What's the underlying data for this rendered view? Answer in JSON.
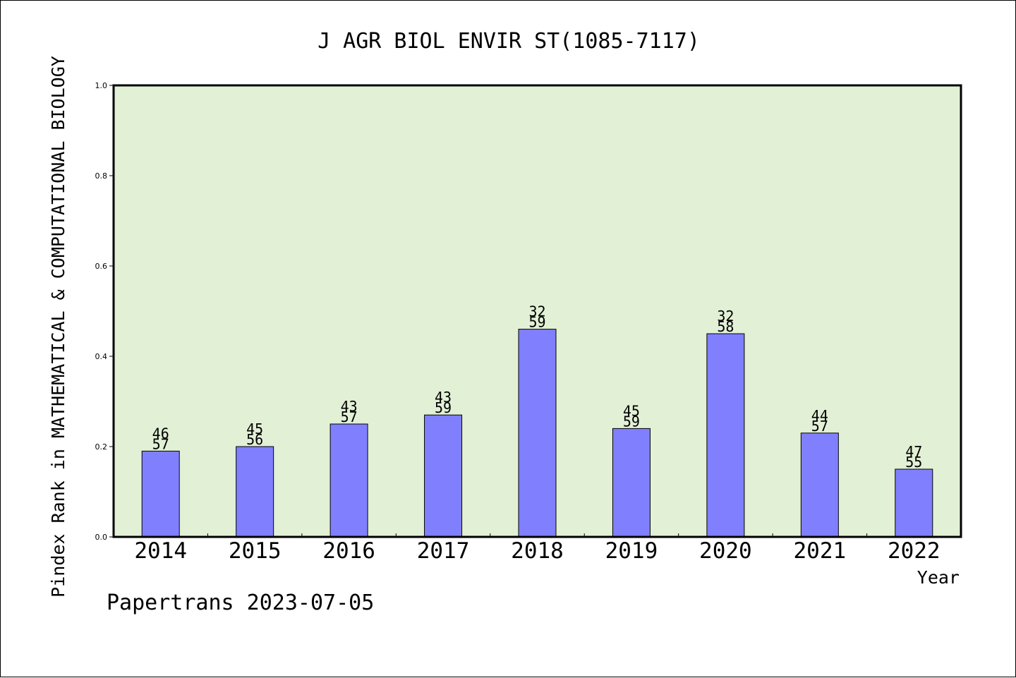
{
  "chart_data": {
    "type": "bar",
    "title": "J AGR BIOL ENVIR ST(1085-7117)",
    "ylabel": "Pindex Rank in MATHEMATICAL & COMPUTATIONAL BIOLOGY",
    "xlabel": "Year",
    "footer": "Papertrans 2023-07-05",
    "ylim": [
      0,
      1.0
    ],
    "yticks": [
      "0.0",
      "0.2",
      "0.4",
      "0.6",
      "0.8",
      "1.0"
    ],
    "categories": [
      "2014",
      "2015",
      "2016",
      "2017",
      "2018",
      "2019",
      "2020",
      "2021",
      "2022"
    ],
    "values": [
      0.19,
      0.2,
      0.25,
      0.27,
      0.46,
      0.24,
      0.45,
      0.23,
      0.15
    ],
    "rank_labels": [
      "46",
      "45",
      "43",
      "43",
      "32",
      "45",
      "32",
      "44",
      "47"
    ],
    "total_labels": [
      "57",
      "56",
      "57",
      "59",
      "59",
      "59",
      "58",
      "57",
      "55"
    ],
    "grid": false,
    "colors": {
      "plot_bg": "#e2f0d6",
      "bar_fill": "#8080ff",
      "bar_stroke": "#000000"
    }
  }
}
